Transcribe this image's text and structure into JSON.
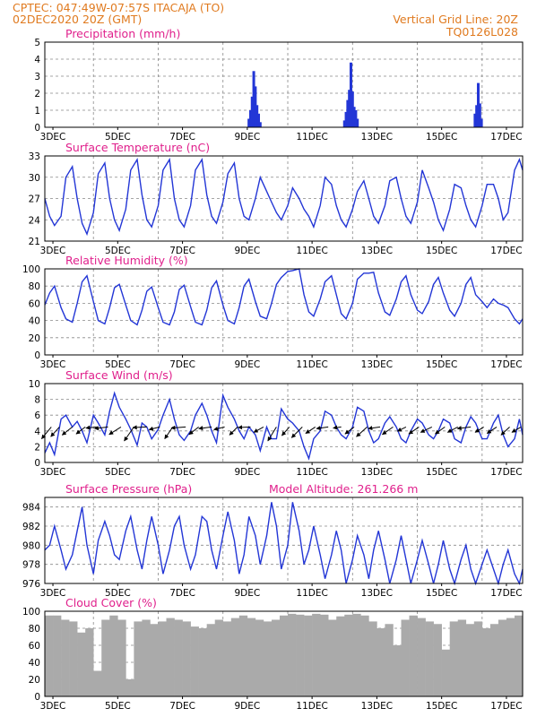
{
  "header": {
    "line1_left": "CPTEC:  047:49W-07:57S  ITACAJA (TO)",
    "line2_left": "02DEC2020 20Z (GMT)",
    "line1_right": "Vertical Grid Line: 20Z",
    "line2_right": "TQ0126L028"
  },
  "colors": {
    "header": "#e07a1f",
    "titles": "#e0208c",
    "series": "#2336d6",
    "bars": "#aaaaaa",
    "arrows": "#000000"
  },
  "x_ticks": [
    "3DEC",
    "5DEC",
    "7DEC",
    "9DEC",
    "11DEC",
    "13DEC",
    "15DEC",
    "17DEC"
  ],
  "chart_data": [
    {
      "type": "bar",
      "title": "Precipitation (mm/h)",
      "x_unit": "days since 02DEC2020 20Z",
      "xlim": [
        0,
        14.75
      ],
      "ylim": [
        0,
        5
      ],
      "yticks": [
        0,
        1,
        2,
        3,
        4,
        5
      ],
      "x": [
        6.3,
        6.35,
        6.4,
        6.45,
        6.5,
        6.55,
        6.6,
        6.65,
        9.25,
        9.3,
        9.35,
        9.4,
        9.45,
        9.5,
        9.55,
        9.6,
        9.65,
        13.28,
        13.33,
        13.38,
        13.43,
        13.48
      ],
      "values": [
        0.5,
        1.0,
        1.8,
        3.3,
        2.4,
        1.3,
        0.8,
        0.3,
        0.4,
        0.9,
        1.6,
        2.2,
        3.8,
        2.1,
        1.2,
        1.0,
        0.5,
        0.8,
        1.3,
        2.6,
        1.4,
        0.5
      ]
    },
    {
      "type": "line",
      "title": "Surface Temperature (nC)",
      "xlim": [
        0,
        14.75
      ],
      "ylim": [
        21,
        33
      ],
      "yticks": [
        21,
        24,
        27,
        30,
        33
      ],
      "x": [
        0,
        0.15,
        0.3,
        0.5,
        0.65,
        0.85,
        1.0,
        1.15,
        1.3,
        1.5,
        1.65,
        1.85,
        2.0,
        2.15,
        2.3,
        2.5,
        2.65,
        2.85,
        3.0,
        3.15,
        3.3,
        3.5,
        3.65,
        3.85,
        4.0,
        4.15,
        4.3,
        4.5,
        4.65,
        4.85,
        5.0,
        5.15,
        5.3,
        5.5,
        5.65,
        5.85,
        6.0,
        6.15,
        6.3,
        6.5,
        6.65,
        6.85,
        7.0,
        7.15,
        7.3,
        7.5,
        7.65,
        7.85,
        8.0,
        8.15,
        8.3,
        8.5,
        8.65,
        8.85,
        9.0,
        9.15,
        9.3,
        9.5,
        9.65,
        9.85,
        10.0,
        10.15,
        10.3,
        10.5,
        10.65,
        10.85,
        11.0,
        11.15,
        11.3,
        11.5,
        11.65,
        11.85,
        12.0,
        12.15,
        12.3,
        12.5,
        12.65,
        12.85,
        13.0,
        13.15,
        13.3,
        13.5,
        13.65,
        13.85,
        14.0,
        14.15,
        14.3,
        14.5,
        14.65,
        14.75
      ],
      "values": [
        27.0,
        24.5,
        23.2,
        24.5,
        30.0,
        31.5,
        27.0,
        23.5,
        22.0,
        25.0,
        30.5,
        32.0,
        27.0,
        24.0,
        22.5,
        25.5,
        31.0,
        32.5,
        27.5,
        24.0,
        23.0,
        26.0,
        31.0,
        32.5,
        27.0,
        24.0,
        23.0,
        26.0,
        31.0,
        32.5,
        27.5,
        24.5,
        23.5,
        26.5,
        30.5,
        32.0,
        27.0,
        24.5,
        24.0,
        27.0,
        30.0,
        28.0,
        26.5,
        25.0,
        24.0,
        26.0,
        28.5,
        27.0,
        25.5,
        24.5,
        23.0,
        26.0,
        30.0,
        29.0,
        26.0,
        24.0,
        23.0,
        25.5,
        28.0,
        29.5,
        27.0,
        24.5,
        23.5,
        26.0,
        29.5,
        30.0,
        27.0,
        24.5,
        23.5,
        26.5,
        31.0,
        28.5,
        26.5,
        24.0,
        22.5,
        25.5,
        29.0,
        28.5,
        26.0,
        24.0,
        23.0,
        26.0,
        29.0,
        29.0,
        27.0,
        24.0,
        25.0,
        31.0,
        32.5,
        31.0
      ]
    },
    {
      "type": "line",
      "title": "Relative Humidity (%)",
      "xlim": [
        0,
        14.75
      ],
      "ylim": [
        0,
        100
      ],
      "yticks": [
        0,
        20,
        40,
        60,
        80,
        100
      ],
      "x": [
        0,
        0.15,
        0.3,
        0.5,
        0.65,
        0.85,
        1.0,
        1.15,
        1.3,
        1.5,
        1.65,
        1.85,
        2.0,
        2.15,
        2.3,
        2.5,
        2.65,
        2.85,
        3.0,
        3.15,
        3.3,
        3.5,
        3.65,
        3.85,
        4.0,
        4.15,
        4.3,
        4.5,
        4.65,
        4.85,
        5.0,
        5.15,
        5.3,
        5.5,
        5.65,
        5.85,
        6.0,
        6.15,
        6.3,
        6.5,
        6.65,
        6.85,
        7.0,
        7.15,
        7.3,
        7.5,
        7.65,
        7.85,
        8.0,
        8.15,
        8.3,
        8.5,
        8.65,
        8.85,
        9.0,
        9.15,
        9.3,
        9.5,
        9.65,
        9.85,
        10.0,
        10.15,
        10.3,
        10.5,
        10.65,
        10.85,
        11.0,
        11.15,
        11.3,
        11.5,
        11.65,
        11.85,
        12.0,
        12.15,
        12.3,
        12.5,
        12.65,
        12.85,
        13.0,
        13.15,
        13.3,
        13.5,
        13.65,
        13.85,
        14.0,
        14.15,
        14.3,
        14.5,
        14.65,
        14.75
      ],
      "values": [
        58,
        72,
        80,
        55,
        42,
        38,
        60,
        85,
        92,
        62,
        40,
        36,
        55,
        78,
        82,
        58,
        40,
        35,
        52,
        74,
        79,
        55,
        38,
        35,
        50,
        76,
        81,
        56,
        38,
        35,
        52,
        78,
        86,
        58,
        40,
        36,
        55,
        80,
        88,
        62,
        45,
        42,
        60,
        82,
        90,
        97,
        98,
        100,
        70,
        50,
        45,
        65,
        85,
        92,
        70,
        48,
        42,
        60,
        88,
        95,
        95,
        96,
        72,
        50,
        46,
        65,
        85,
        92,
        70,
        52,
        48,
        62,
        82,
        90,
        72,
        52,
        45,
        60,
        82,
        90,
        70,
        62,
        55,
        65,
        60,
        58,
        55,
        42,
        36,
        42
      ]
    },
    {
      "type": "line",
      "title": "Surface Wind (m/s)",
      "xlim": [
        0,
        14.75
      ],
      "ylim": [
        0,
        10
      ],
      "yticks": [
        0,
        2,
        4,
        6,
        8,
        10
      ],
      "x": [
        0,
        0.15,
        0.3,
        0.5,
        0.65,
        0.85,
        1.0,
        1.15,
        1.3,
        1.5,
        1.65,
        1.85,
        2.0,
        2.15,
        2.3,
        2.5,
        2.65,
        2.85,
        3.0,
        3.15,
        3.3,
        3.5,
        3.65,
        3.85,
        4.0,
        4.15,
        4.3,
        4.5,
        4.65,
        4.85,
        5.0,
        5.15,
        5.3,
        5.5,
        5.65,
        5.85,
        6.0,
        6.15,
        6.3,
        6.5,
        6.65,
        6.85,
        7.0,
        7.15,
        7.3,
        7.5,
        7.65,
        7.85,
        8.0,
        8.15,
        8.3,
        8.5,
        8.65,
        8.85,
        9.0,
        9.15,
        9.3,
        9.5,
        9.65,
        9.85,
        10.0,
        10.15,
        10.3,
        10.5,
        10.65,
        10.85,
        11.0,
        11.15,
        11.3,
        11.5,
        11.65,
        11.85,
        12.0,
        12.15,
        12.3,
        12.5,
        12.65,
        12.85,
        13.0,
        13.15,
        13.3,
        13.5,
        13.65,
        13.85,
        14.0,
        14.15,
        14.3,
        14.5,
        14.65,
        14.75
      ],
      "values": [
        1.2,
        2.5,
        1.0,
        5.5,
        6.0,
        4.5,
        5.2,
        4.0,
        2.5,
        6.0,
        5.0,
        3.5,
        6.5,
        8.8,
        7.0,
        5.5,
        4.2,
        2.2,
        5.0,
        4.5,
        3.0,
        4.2,
        6.0,
        8.0,
        5.5,
        3.5,
        2.8,
        4.0,
        6.0,
        7.5,
        6.0,
        4.0,
        2.5,
        8.5,
        7.0,
        5.5,
        4.0,
        3.0,
        4.5,
        3.5,
        1.5,
        4.5,
        3.0,
        3.0,
        6.8,
        5.5,
        5.0,
        4.0,
        2.0,
        0.5,
        3.0,
        4.0,
        6.5,
        6.0,
        4.5,
        3.5,
        3.0,
        4.5,
        7.0,
        6.5,
        4.0,
        2.5,
        3.0,
        5.0,
        5.8,
        4.5,
        3.0,
        2.5,
        4.0,
        5.5,
        5.0,
        3.5,
        3.0,
        4.0,
        5.5,
        5.0,
        3.0,
        2.5,
        4.5,
        5.8,
        5.0,
        3.0,
        3.0,
        5.0,
        6.0,
        3.5,
        2.0,
        3.0,
        5.5,
        3.5
      ],
      "arrows": {
        "x": [
          0.2,
          0.45,
          0.85,
          1.25,
          1.6,
          1.95,
          2.35,
          2.75,
          3.15,
          3.55,
          3.95,
          4.35,
          4.75,
          5.15,
          5.55,
          5.95,
          6.35,
          6.75,
          7.15,
          7.55,
          7.95,
          8.35,
          8.75,
          9.15,
          9.55,
          9.95,
          10.35,
          10.75,
          11.15,
          11.55,
          11.95,
          12.35,
          12.75,
          13.15,
          13.55,
          13.95,
          14.35,
          14.7
        ],
        "u": [
          1.8,
          1.6,
          1.9,
          1.7,
          2.0,
          2.5,
          2.2,
          1.8,
          2.6,
          2.0,
          1.5,
          2.7,
          1.8,
          2.4,
          2.0,
          1.5,
          2.3,
          1.8,
          1.6,
          1.4,
          2.0,
          1.8,
          2.2,
          1.5,
          1.7,
          2.0,
          2.2,
          2.0,
          1.6,
          1.9,
          2.1,
          1.8,
          1.9,
          2.5,
          1.6,
          1.8,
          1.6,
          1.7
        ],
        "v": [
          2.2,
          1.8,
          1.5,
          1.3,
          0.2,
          0.3,
          1.4,
          2.6,
          0.1,
          0.5,
          2.2,
          0.2,
          1.4,
          0.3,
          0.5,
          1.5,
          0.1,
          1.0,
          2.6,
          1.6,
          2.0,
          1.2,
          0.3,
          0.2,
          1.3,
          1.8,
          0.3,
          1.4,
          0.8,
          1.3,
          1.0,
          1.3,
          1.0,
          0.3,
          1.0,
          1.2,
          1.5,
          1.0
        ]
      }
    },
    {
      "type": "line",
      "title": "Surface Pressure (hPa)",
      "annotation": "Model Altitude: 261.266 m",
      "xlim": [
        0,
        14.75
      ],
      "ylim": [
        976,
        985
      ],
      "yticks": [
        976,
        978,
        980,
        982,
        984
      ],
      "x": [
        0,
        0.15,
        0.3,
        0.5,
        0.65,
        0.85,
        1.0,
        1.15,
        1.3,
        1.5,
        1.65,
        1.85,
        2.0,
        2.15,
        2.3,
        2.5,
        2.65,
        2.85,
        3.0,
        3.15,
        3.3,
        3.5,
        3.65,
        3.85,
        4.0,
        4.15,
        4.3,
        4.5,
        4.65,
        4.85,
        5.0,
        5.15,
        5.3,
        5.5,
        5.65,
        5.85,
        6.0,
        6.15,
        6.3,
        6.5,
        6.65,
        6.85,
        7.0,
        7.15,
        7.3,
        7.5,
        7.65,
        7.85,
        8.0,
        8.15,
        8.3,
        8.5,
        8.65,
        8.85,
        9.0,
        9.15,
        9.3,
        9.5,
        9.65,
        9.85,
        10.0,
        10.15,
        10.3,
        10.5,
        10.65,
        10.85,
        11.0,
        11.15,
        11.3,
        11.5,
        11.65,
        11.85,
        12.0,
        12.15,
        12.3,
        12.5,
        12.65,
        12.85,
        13.0,
        13.15,
        13.3,
        13.5,
        13.65,
        13.85,
        14.0,
        14.15,
        14.3,
        14.5,
        14.65,
        14.75
      ],
      "values": [
        979.5,
        980.0,
        982.0,
        979.5,
        977.5,
        979.0,
        981.5,
        984.0,
        980.0,
        977.0,
        980.5,
        982.5,
        981.0,
        979.0,
        978.5,
        981.5,
        983.0,
        979.5,
        977.5,
        980.5,
        983.0,
        980.0,
        977.0,
        979.5,
        982.0,
        983.0,
        980.0,
        977.5,
        979.0,
        983.0,
        982.5,
        979.5,
        977.5,
        981.0,
        983.5,
        980.5,
        977.0,
        979.0,
        983.0,
        981.0,
        978.0,
        981.0,
        984.5,
        982.0,
        977.5,
        980.0,
        984.5,
        981.5,
        978.0,
        979.5,
        982.0,
        979.0,
        976.5,
        979.0,
        981.5,
        979.5,
        976.0,
        978.5,
        981.0,
        979.0,
        976.5,
        979.5,
        981.5,
        978.5,
        976.0,
        978.5,
        981.0,
        978.5,
        976.0,
        978.5,
        980.5,
        978.0,
        976.0,
        978.0,
        980.5,
        977.5,
        976.0,
        978.5,
        980.0,
        977.5,
        976.0,
        978.0,
        979.5,
        977.5,
        976.0,
        978.0,
        979.5,
        977.0,
        976.0,
        977.5
      ]
    },
    {
      "type": "bar",
      "title": "Cloud Cover (%)",
      "xlim": [
        0,
        14.75
      ],
      "ylim": [
        0,
        100
      ],
      "yticks": [
        0,
        20,
        40,
        60,
        80,
        100
      ],
      "x": [
        0,
        0.25,
        0.5,
        0.75,
        1.0,
        1.25,
        1.5,
        1.75,
        2.0,
        2.25,
        2.5,
        2.75,
        3.0,
        3.25,
        3.5,
        3.75,
        4.0,
        4.25,
        4.5,
        4.75,
        5.0,
        5.25,
        5.5,
        5.75,
        6.0,
        6.25,
        6.5,
        6.75,
        7.0,
        7.25,
        7.5,
        7.75,
        8.0,
        8.25,
        8.5,
        8.75,
        9.0,
        9.25,
        9.5,
        9.75,
        10.0,
        10.25,
        10.5,
        10.75,
        11.0,
        11.25,
        11.5,
        11.75,
        12.0,
        12.25,
        12.5,
        12.75,
        13.0,
        13.25,
        13.5,
        13.75,
        14.0,
        14.25,
        14.5
      ],
      "values": [
        95,
        95,
        90,
        88,
        75,
        80,
        30,
        90,
        95,
        90,
        20,
        88,
        90,
        85,
        88,
        92,
        90,
        88,
        82,
        80,
        85,
        90,
        88,
        92,
        95,
        92,
        90,
        88,
        90,
        95,
        97,
        96,
        95,
        97,
        96,
        90,
        94,
        96,
        97,
        95,
        88,
        80,
        85,
        60,
        90,
        95,
        92,
        88,
        85,
        55,
        88,
        90,
        85,
        88,
        80,
        85,
        90,
        92,
        95
      ]
    }
  ]
}
